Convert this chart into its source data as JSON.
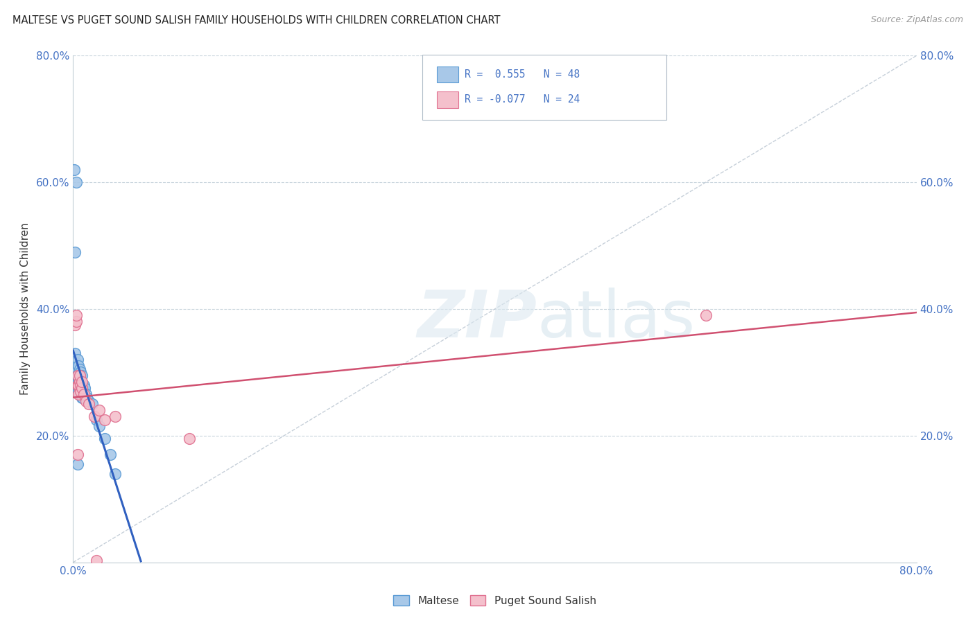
{
  "title": "MALTESE VS PUGET SOUND SALISH FAMILY HOUSEHOLDS WITH CHILDREN CORRELATION CHART",
  "source": "Source: ZipAtlas.com",
  "ylabel": "Family Households with Children",
  "xlim": [
    0.0,
    0.8
  ],
  "ylim": [
    0.0,
    0.8
  ],
  "maltese_color": "#a8c8e8",
  "maltese_edge_color": "#5b9bd5",
  "puget_color": "#f4c0cc",
  "puget_edge_color": "#e07090",
  "trend_blue": "#3060c0",
  "trend_pink": "#d05070",
  "diag_color": "#b8c4d0",
  "legend_text_color": "#4472c4",
  "R_maltese": 0.555,
  "N_maltese": 48,
  "R_puget": -0.077,
  "N_puget": 24,
  "maltese_x": [
    0.001,
    0.001,
    0.001,
    0.002,
    0.002,
    0.002,
    0.002,
    0.003,
    0.003,
    0.003,
    0.003,
    0.003,
    0.004,
    0.004,
    0.004,
    0.004,
    0.004,
    0.005,
    0.005,
    0.005,
    0.005,
    0.006,
    0.006,
    0.006,
    0.007,
    0.007,
    0.007,
    0.008,
    0.008,
    0.008,
    0.009,
    0.009,
    0.01,
    0.01,
    0.011,
    0.012,
    0.013,
    0.015,
    0.018,
    0.022,
    0.025,
    0.03,
    0.035,
    0.04,
    0.002,
    0.003,
    0.001,
    0.004
  ],
  "maltese_y": [
    0.3,
    0.31,
    0.28,
    0.29,
    0.31,
    0.33,
    0.295,
    0.305,
    0.315,
    0.28,
    0.27,
    0.295,
    0.295,
    0.305,
    0.32,
    0.285,
    0.27,
    0.285,
    0.295,
    0.31,
    0.27,
    0.295,
    0.305,
    0.285,
    0.29,
    0.3,
    0.27,
    0.28,
    0.295,
    0.26,
    0.275,
    0.26,
    0.265,
    0.28,
    0.275,
    0.265,
    0.26,
    0.255,
    0.25,
    0.225,
    0.215,
    0.195,
    0.17,
    0.14,
    0.49,
    0.6,
    0.62,
    0.155
  ],
  "puget_x": [
    0.002,
    0.003,
    0.003,
    0.004,
    0.004,
    0.005,
    0.005,
    0.006,
    0.006,
    0.007,
    0.007,
    0.008,
    0.008,
    0.01,
    0.012,
    0.015,
    0.02,
    0.025,
    0.03,
    0.04,
    0.11,
    0.6,
    0.004,
    0.022
  ],
  "puget_y": [
    0.375,
    0.38,
    0.39,
    0.28,
    0.295,
    0.28,
    0.265,
    0.285,
    0.295,
    0.27,
    0.28,
    0.275,
    0.285,
    0.265,
    0.255,
    0.25,
    0.23,
    0.24,
    0.225,
    0.23,
    0.195,
    0.39,
    0.17,
    0.003
  ]
}
